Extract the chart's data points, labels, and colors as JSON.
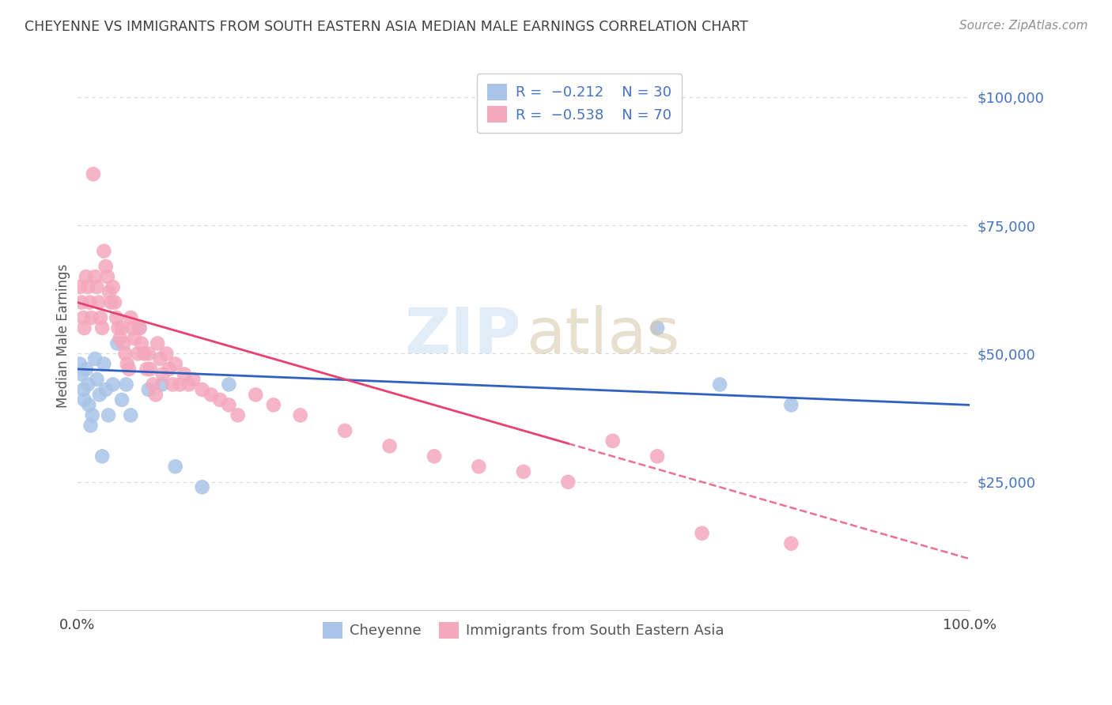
{
  "title": "CHEYENNE VS IMMIGRANTS FROM SOUTH EASTERN ASIA MEDIAN MALE EARNINGS CORRELATION CHART",
  "source": "Source: ZipAtlas.com",
  "ylabel": "Median Male Earnings",
  "ymax": 107000,
  "ymin": 0,
  "xmin": 0,
  "xmax": 100,
  "blue_R": -0.212,
  "blue_N": 30,
  "pink_R": -0.538,
  "pink_N": 70,
  "blue_label": "Cheyenne",
  "pink_label": "Immigrants from South Eastern Asia",
  "blue_color": "#aac4e8",
  "pink_color": "#f4a8bc",
  "blue_line_color": "#3060c0",
  "pink_line_color": "#e84070",
  "background_color": "#ffffff",
  "grid_color": "#d8d8d8",
  "title_color": "#404040",
  "source_color": "#909090",
  "axis_label_color": "#4472c4",
  "blue_line_intercept": 47000,
  "blue_line_slope": -70,
  "pink_line_intercept": 60000,
  "pink_line_slope": -500,
  "blue_x": [
    0.3,
    0.5,
    0.7,
    0.8,
    1.0,
    1.2,
    1.3,
    1.5,
    1.7,
    2.0,
    2.2,
    2.5,
    2.8,
    3.0,
    3.2,
    3.5,
    4.0,
    4.5,
    5.0,
    5.5,
    6.0,
    7.0,
    8.0,
    9.5,
    11.0,
    14.0,
    17.0,
    65.0,
    72.0,
    80.0
  ],
  "blue_y": [
    48000,
    46000,
    43000,
    41000,
    47000,
    44000,
    40000,
    36000,
    38000,
    49000,
    45000,
    42000,
    30000,
    48000,
    43000,
    38000,
    44000,
    52000,
    41000,
    44000,
    38000,
    55000,
    43000,
    44000,
    28000,
    24000,
    44000,
    55000,
    44000,
    40000
  ],
  "pink_x": [
    0.3,
    0.5,
    0.7,
    0.8,
    1.0,
    1.2,
    1.4,
    1.6,
    1.8,
    2.0,
    2.2,
    2.4,
    2.6,
    2.8,
    3.0,
    3.2,
    3.4,
    3.6,
    3.8,
    4.0,
    4.2,
    4.4,
    4.6,
    4.8,
    5.0,
    5.2,
    5.4,
    5.6,
    5.8,
    6.0,
    6.2,
    6.4,
    6.8,
    7.0,
    7.2,
    7.5,
    7.8,
    8.0,
    8.2,
    8.5,
    8.8,
    9.0,
    9.3,
    9.6,
    10.0,
    10.3,
    10.7,
    11.0,
    11.5,
    12.0,
    12.5,
    13.0,
    14.0,
    15.0,
    16.0,
    17.0,
    18.0,
    20.0,
    22.0,
    25.0,
    30.0,
    35.0,
    40.0,
    45.0,
    50.0,
    55.0,
    60.0,
    65.0,
    70.0,
    80.0
  ],
  "pink_y": [
    63000,
    60000,
    57000,
    55000,
    65000,
    63000,
    60000,
    57000,
    85000,
    65000,
    63000,
    60000,
    57000,
    55000,
    70000,
    67000,
    65000,
    62000,
    60000,
    63000,
    60000,
    57000,
    55000,
    53000,
    55000,
    52000,
    50000,
    48000,
    47000,
    57000,
    55000,
    53000,
    50000,
    55000,
    52000,
    50000,
    47000,
    50000,
    47000,
    44000,
    42000,
    52000,
    49000,
    46000,
    50000,
    47000,
    44000,
    48000,
    44000,
    46000,
    44000,
    45000,
    43000,
    42000,
    41000,
    40000,
    38000,
    42000,
    40000,
    38000,
    35000,
    32000,
    30000,
    28000,
    27000,
    25000,
    33000,
    30000,
    15000,
    13000
  ],
  "figsize": [
    14.06,
    8.92
  ],
  "dpi": 100
}
